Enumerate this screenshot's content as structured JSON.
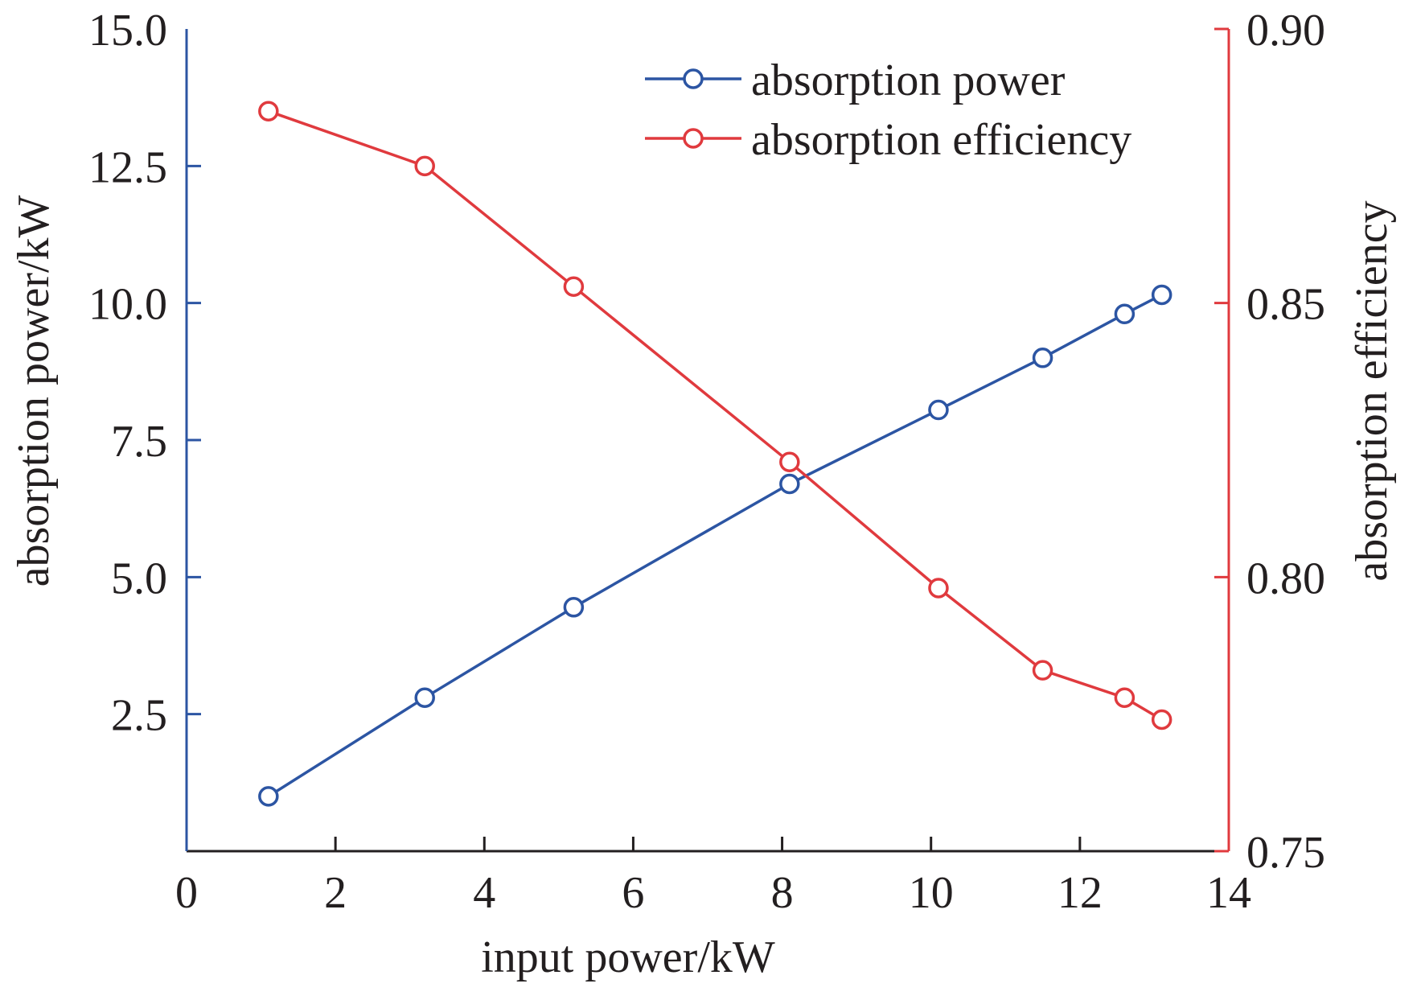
{
  "chart_data": {
    "type": "line",
    "title": "",
    "xlabel": "input power/kW",
    "ylabel_left": "absorption power/kW",
    "ylabel_right": "absorption efficiency",
    "xlim": [
      0,
      14
    ],
    "ylim_left": [
      0,
      15
    ],
    "ylim_right": [
      0.75,
      0.9
    ],
    "x_ticks": [
      "0",
      "2",
      "4",
      "6",
      "8",
      "10",
      "12",
      "14"
    ],
    "y_left_ticks": [
      "2.5",
      "5.0",
      "7.5",
      "10.0",
      "12.5",
      "15.0"
    ],
    "y_right_ticks": [
      "0.75",
      "0.80",
      "0.85",
      "0.90"
    ],
    "grid": false,
    "legend_position": "top-right",
    "colors": {
      "blue": "#2c55a3",
      "red": "#e03a3e",
      "axis": "#231f20"
    },
    "series": [
      {
        "name": "absorption power",
        "axis": "left",
        "color": "#2c55a3",
        "x": [
          1.1,
          3.2,
          5.2,
          8.1,
          10.1,
          11.5,
          12.6,
          13.1
        ],
        "values": [
          1.0,
          2.8,
          4.45,
          6.7,
          8.05,
          9.0,
          9.8,
          10.15
        ]
      },
      {
        "name": "absorption efficiency",
        "axis": "right",
        "color": "#e03a3e",
        "x": [
          1.1,
          3.2,
          5.2,
          8.1,
          10.1,
          11.5,
          12.6,
          13.1
        ],
        "values": [
          0.885,
          0.875,
          0.853,
          0.821,
          0.798,
          0.783,
          0.778,
          0.774
        ]
      }
    ]
  }
}
